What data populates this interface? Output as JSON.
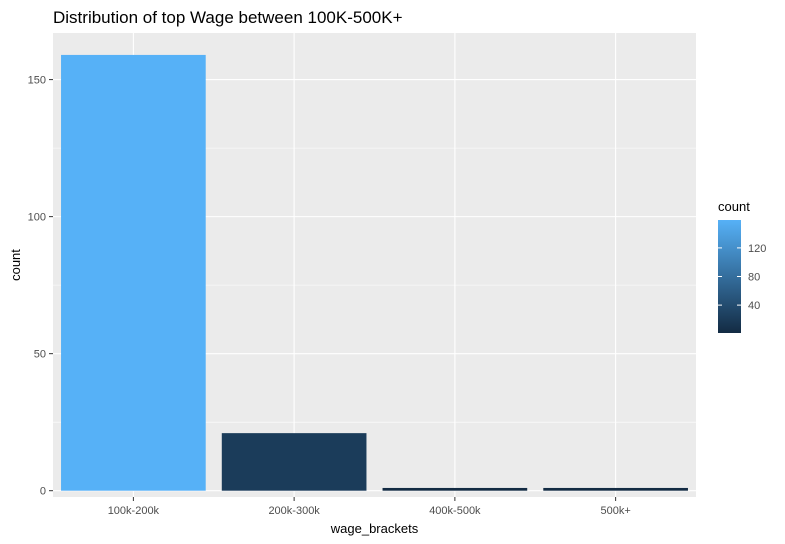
{
  "chart_data": {
    "type": "bar",
    "title": "Distribution of top Wage between 100K-500K+",
    "xlabel": "wage_brackets",
    "ylabel": "count",
    "categories": [
      "100k-200k",
      "200k-300k",
      "400k-500k",
      "500k+"
    ],
    "values": [
      159,
      21,
      1,
      1
    ],
    "ylim": [
      -2.3,
      167
    ],
    "yticks": [
      0,
      50,
      100,
      150
    ],
    "grid": true,
    "legend": {
      "title": "count",
      "placement": "right",
      "ticks": [
        40,
        80,
        120
      ],
      "range": [
        1,
        159
      ],
      "low_color": "#132b43",
      "high_color": "#56b1f7"
    },
    "colors": {
      "panel_background": "#ebebeb",
      "grid": "#ffffff"
    }
  }
}
